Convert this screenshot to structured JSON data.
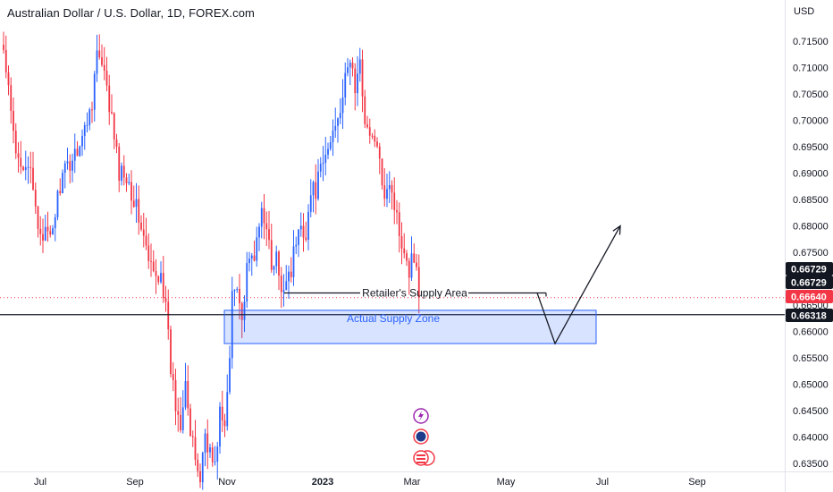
{
  "chart_data": {
    "type": "candlestick",
    "title": "Australian Dollar / U.S. Dollar, 1D, FOREX.com",
    "currency_label": "USD",
    "y_ticks": [
      "0.71500",
      "0.71000",
      "0.70500",
      "0.70000",
      "0.69500",
      "0.69000",
      "0.68500",
      "0.68000",
      "0.67500",
      "0.67000",
      "0.66500",
      "0.66000",
      "0.65500",
      "0.65000",
      "0.64500",
      "0.64000",
      "0.63500"
    ],
    "y_tick_values": [
      0.715,
      0.71,
      0.705,
      0.7,
      0.695,
      0.69,
      0.685,
      0.68,
      0.675,
      0.67,
      0.665,
      0.66,
      0.655,
      0.65,
      0.645,
      0.64,
      0.635
    ],
    "x_ticks": [
      "Jul",
      "Sep",
      "Nov",
      "2023",
      "Mar",
      "May",
      "Jul",
      "Sep"
    ],
    "ylim": [
      0.6325,
      0.719
    ],
    "grid": false,
    "price_labels": [
      {
        "text": "0.66729",
        "value": 0.66729,
        "color": "#131722"
      },
      {
        "text": "0.66729",
        "value": 0.66729,
        "color": "#131722"
      },
      {
        "text": "0.66640",
        "value": 0.6664,
        "color": "#f23645"
      },
      {
        "text": "0.66318",
        "value": 0.66318,
        "color": "#131722"
      }
    ],
    "series": [
      {
        "name": "AUDUSD",
        "anchors": [
          [
            0,
            0.713
          ],
          [
            5,
            0.693
          ],
          [
            10,
            0.692
          ],
          [
            14,
            0.68
          ],
          [
            19,
            0.677
          ],
          [
            23,
            0.688
          ],
          [
            27,
            0.692
          ],
          [
            30,
            0.695
          ],
          [
            33,
            0.698
          ],
          [
            36,
            0.704
          ],
          [
            38,
            0.713
          ],
          [
            41,
            0.708
          ],
          [
            44,
            0.7
          ],
          [
            47,
            0.69
          ],
          [
            50,
            0.69
          ],
          [
            53,
            0.685
          ],
          [
            56,
            0.68
          ],
          [
            59,
            0.673
          ],
          [
            62,
            0.67
          ],
          [
            64,
            0.672
          ],
          [
            66,
            0.664
          ],
          [
            68,
            0.653
          ],
          [
            70,
            0.646
          ],
          [
            72,
            0.643
          ],
          [
            74,
            0.652
          ],
          [
            76,
            0.64
          ],
          [
            78,
            0.636
          ],
          [
            80,
            0.632
          ],
          [
            82,
            0.641
          ],
          [
            84,
            0.637
          ],
          [
            86,
            0.634
          ],
          [
            88,
            0.645
          ],
          [
            90,
            0.641
          ],
          [
            92,
            0.655
          ],
          [
            93,
            0.668
          ],
          [
            95,
            0.67
          ],
          [
            97,
            0.662
          ],
          [
            99,
            0.671
          ],
          [
            101,
            0.674
          ],
          [
            103,
            0.676
          ],
          [
            105,
            0.683
          ],
          [
            107,
            0.681
          ],
          [
            109,
            0.671
          ],
          [
            111,
            0.674
          ],
          [
            113,
            0.666
          ],
          [
            115,
            0.671
          ],
          [
            117,
            0.672
          ],
          [
            119,
            0.677
          ],
          [
            121,
            0.68
          ],
          [
            123,
            0.679
          ],
          [
            125,
            0.686
          ],
          [
            127,
            0.687
          ],
          [
            129,
            0.69
          ],
          [
            131,
            0.693
          ],
          [
            133,
            0.696
          ],
          [
            135,
            0.7
          ],
          [
            137,
            0.703
          ],
          [
            139,
            0.707
          ],
          [
            141,
            0.712
          ],
          [
            143,
            0.706
          ],
          [
            145,
            0.71
          ],
          [
            147,
            0.701
          ],
          [
            149,
            0.696
          ],
          [
            151,
            0.697
          ],
          [
            153,
            0.691
          ],
          [
            155,
            0.687
          ],
          [
            157,
            0.689
          ],
          [
            159,
            0.684
          ],
          [
            161,
            0.679
          ],
          [
            163,
            0.676
          ],
          [
            165,
            0.672
          ],
          [
            167,
            0.675
          ],
          [
            169,
            0.6664
          ]
        ]
      }
    ],
    "annotations": [
      {
        "text": "Retailer's Supply Area"
      },
      {
        "text": "Actual Supply Zone"
      }
    ],
    "supply_zone": {
      "top": 0.664,
      "bottom": 0.6577
    },
    "horizontal_line": 0.66318,
    "retailer_line": 0.66729,
    "projection_path": [
      [
        0.6673
      ],
      [
        0.6577
      ],
      [
        0.68
      ]
    ]
  }
}
